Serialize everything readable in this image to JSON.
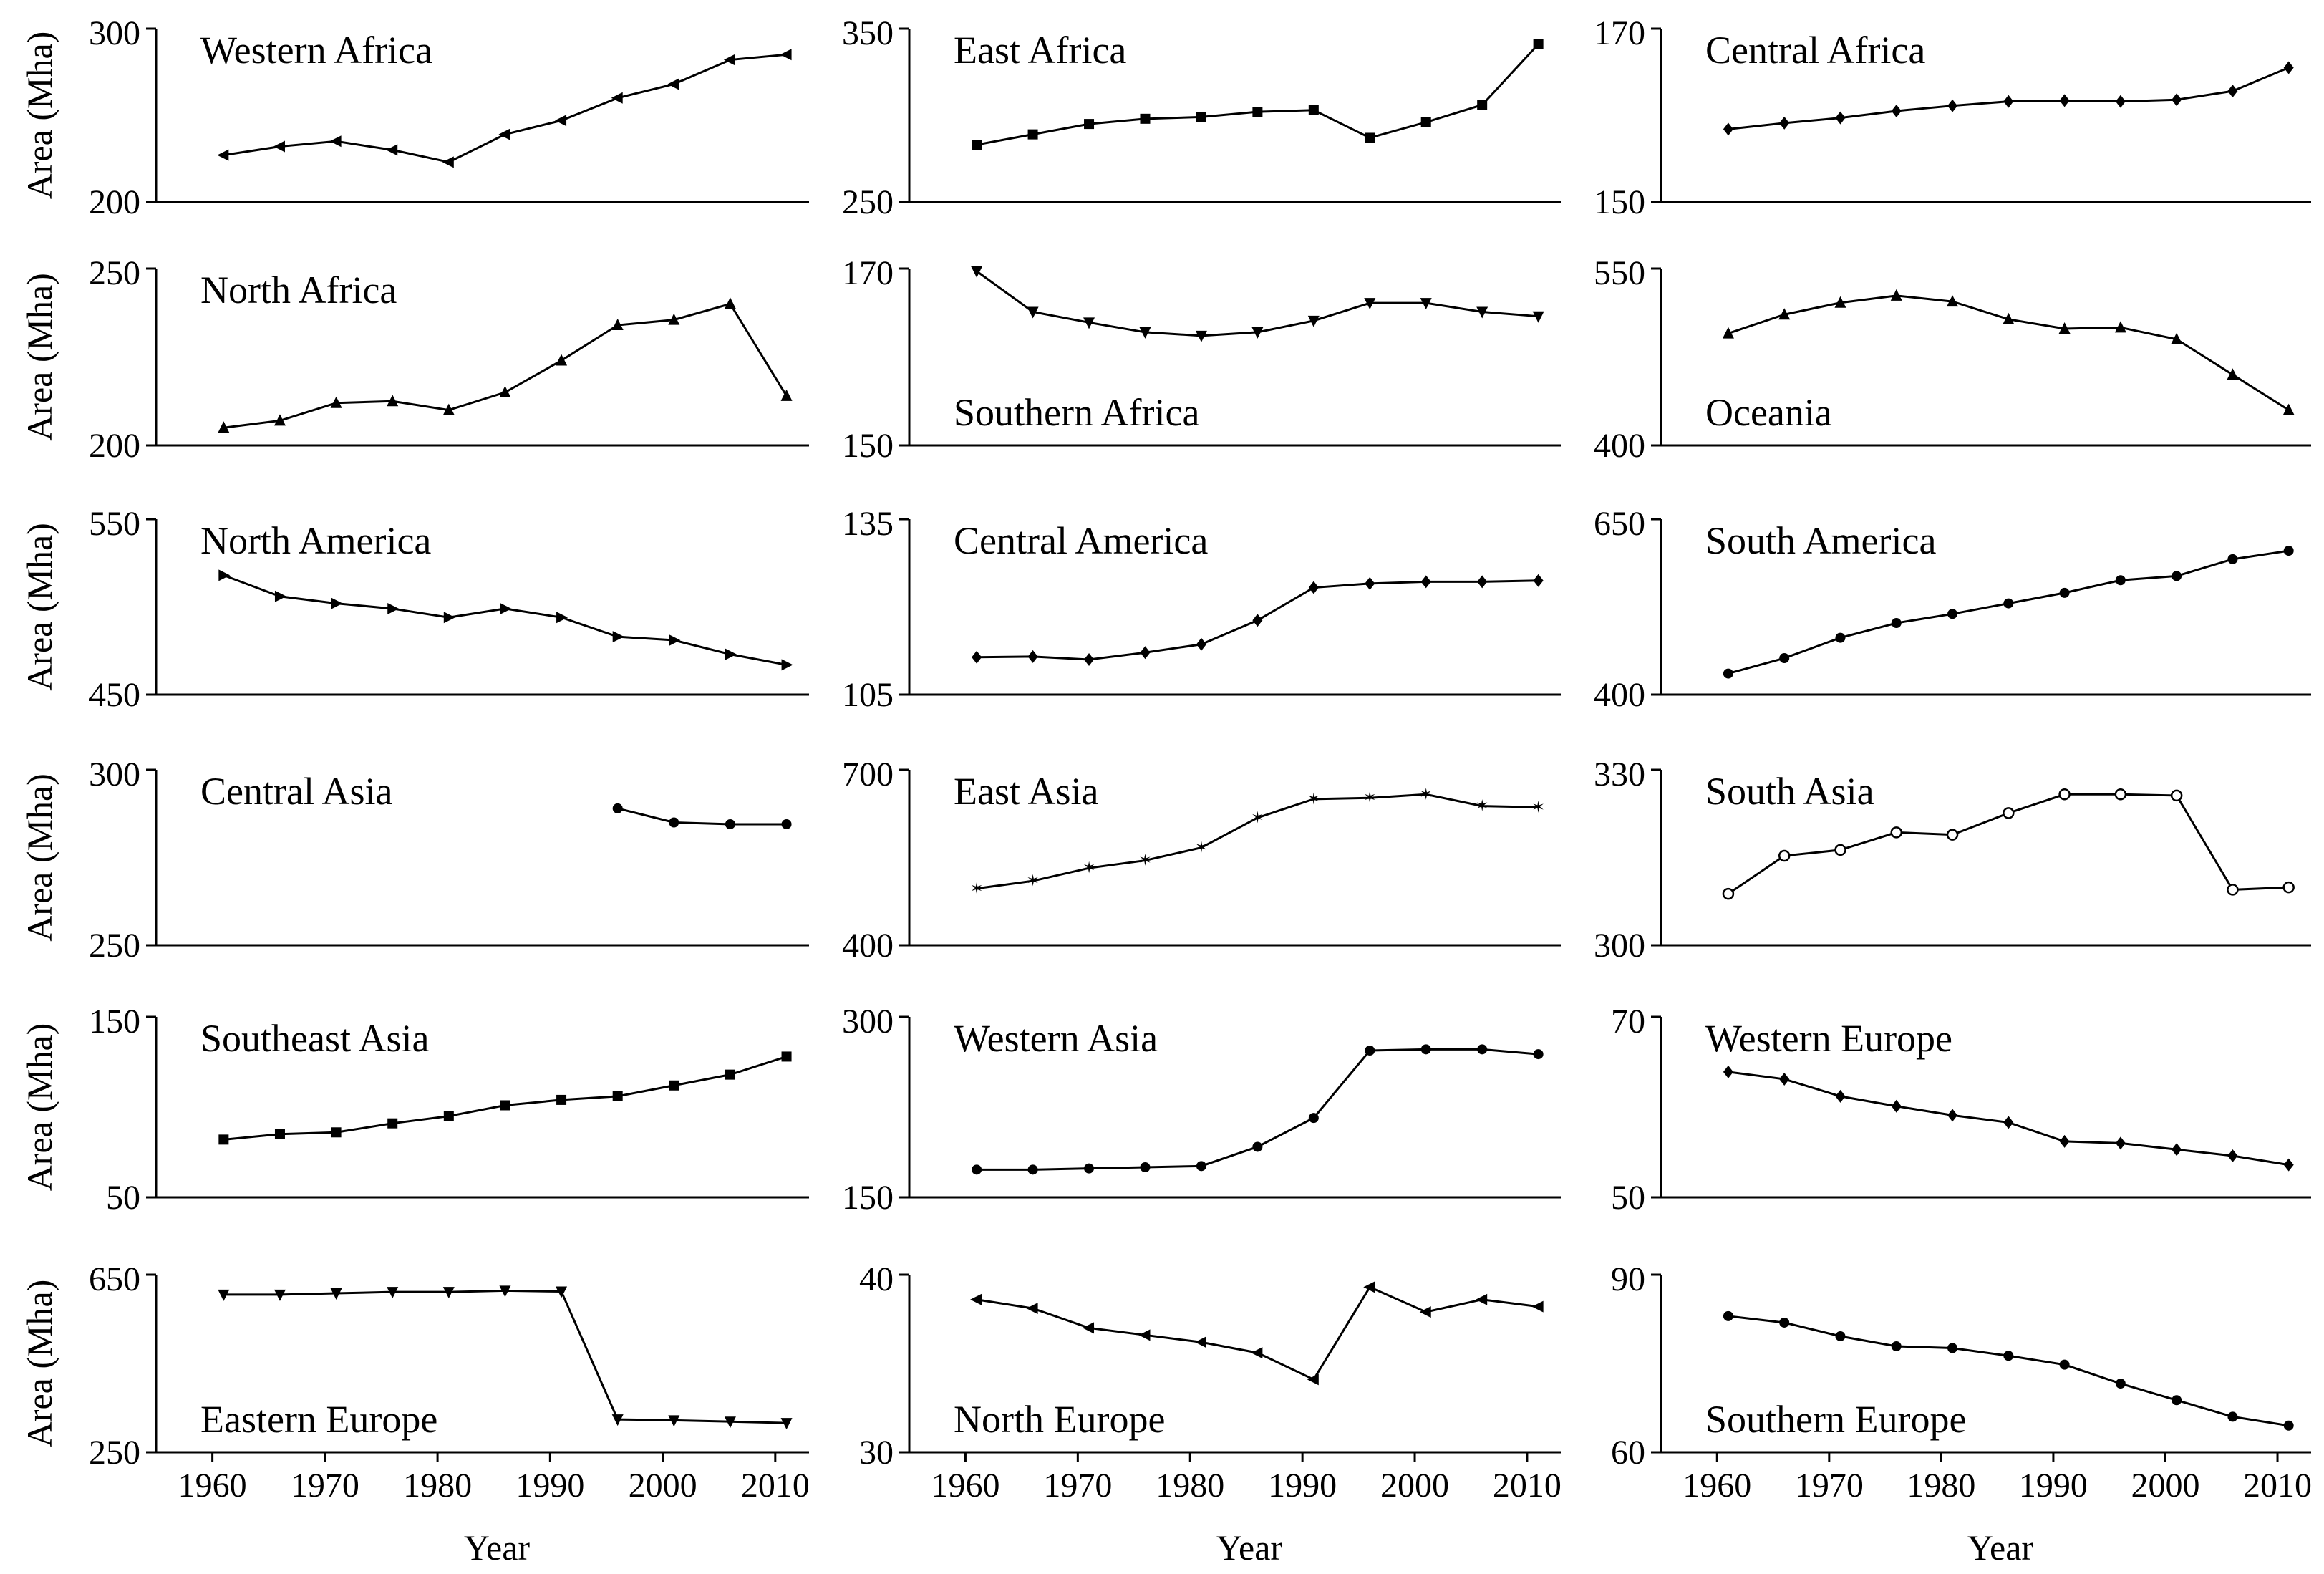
{
  "x_years": [
    1961,
    1966,
    1971,
    1976,
    1981,
    1986,
    1991,
    1996,
    2001,
    2006,
    2011
  ],
  "chart_data": [
    {
      "type": "line",
      "title": "Western Africa",
      "ylabel": "Area (Mha)",
      "xlabel": "",
      "ylim": [
        200,
        300
      ],
      "yticks": [
        200,
        300
      ],
      "xticks": [],
      "x": [
        1961,
        1966,
        1971,
        1976,
        1981,
        1986,
        1991,
        1996,
        2001,
        2006,
        2011
      ],
      "values": [
        227,
        232,
        235,
        230,
        223,
        239,
        247,
        260,
        268,
        282,
        285
      ],
      "marker": "triangle-left"
    },
    {
      "type": "line",
      "title": "East Africa",
      "ylabel": "",
      "xlabel": "",
      "ylim": [
        250,
        350
      ],
      "yticks": [
        250,
        350
      ],
      "xticks": [],
      "x": [
        1961,
        1966,
        1971,
        1976,
        1981,
        1986,
        1991,
        1996,
        2001,
        2006,
        2011
      ],
      "values": [
        283,
        289,
        295,
        298,
        299,
        302,
        303,
        287,
        296,
        306,
        341
      ],
      "marker": "square"
    },
    {
      "type": "line",
      "title": "Central Africa",
      "ylabel": "",
      "xlabel": "",
      "ylim": [
        150,
        170
      ],
      "yticks": [
        150,
        170
      ],
      "xticks": [],
      "x": [
        1961,
        1966,
        1971,
        1976,
        1981,
        1986,
        1991,
        1996,
        2001,
        2006,
        2011
      ],
      "values": [
        158.4,
        159.1,
        159.7,
        160.5,
        161.1,
        161.6,
        161.7,
        161.6,
        161.8,
        162.8,
        165.5
      ],
      "marker": "diamond"
    },
    {
      "type": "line",
      "title": "North Africa",
      "ylabel": "Area (Mha)",
      "xlabel": "",
      "ylim": [
        200,
        250
      ],
      "yticks": [
        200,
        250
      ],
      "xticks": [],
      "x": [
        1961,
        1966,
        1971,
        1976,
        1981,
        1986,
        1991,
        1996,
        2001,
        2006,
        2011
      ],
      "values": [
        205,
        207,
        212,
        212.5,
        210,
        215,
        224,
        234,
        235.5,
        240,
        214
      ],
      "marker": "triangle-up"
    },
    {
      "type": "line",
      "title": "Southern Africa",
      "ylabel": "",
      "xlabel": "",
      "ylim": [
        150,
        170
      ],
      "yticks": [
        150,
        170
      ],
      "xticks": [],
      "x": [
        1961,
        1966,
        1971,
        1976,
        1981,
        1986,
        1991,
        1996,
        2001,
        2006,
        2011
      ],
      "values": [
        169.7,
        165.1,
        163.9,
        162.8,
        162.4,
        162.8,
        164.1,
        166.1,
        166.1,
        165.1,
        164.6
      ],
      "marker": "triangle-down"
    },
    {
      "type": "line",
      "title": "Oceania",
      "ylabel": "",
      "xlabel": "",
      "ylim": [
        400,
        550
      ],
      "yticks": [
        400,
        550
      ],
      "xticks": [],
      "x": [
        1961,
        1966,
        1971,
        1976,
        1981,
        1986,
        1991,
        1996,
        2001,
        2006,
        2011
      ],
      "values": [
        495,
        511,
        521,
        527,
        522,
        507,
        499,
        500,
        490,
        460,
        430
      ],
      "marker": "triangle-up"
    },
    {
      "type": "line",
      "title": "North America",
      "ylabel": "Area (Mha)",
      "xlabel": "",
      "ylim": [
        450,
        550
      ],
      "yticks": [
        450,
        550
      ],
      "xticks": [],
      "x": [
        1961,
        1966,
        1971,
        1976,
        1981,
        1986,
        1991,
        1996,
        2001,
        2006,
        2011
      ],
      "values": [
        518,
        506,
        502,
        499,
        494,
        499,
        494,
        483,
        481,
        473,
        467
      ],
      "marker": "triangle-right"
    },
    {
      "type": "line",
      "title": "Central America",
      "ylabel": "",
      "xlabel": "",
      "ylim": [
        105,
        135
      ],
      "yticks": [
        105,
        135
      ],
      "xticks": [],
      "x": [
        1961,
        1966,
        1971,
        1976,
        1981,
        1986,
        1991,
        1996,
        2001,
        2006,
        2011
      ],
      "values": [
        111.4,
        111.5,
        111.0,
        112.2,
        113.6,
        117.7,
        123.3,
        124.0,
        124.3,
        124.3,
        124.5
      ],
      "marker": "diamond"
    },
    {
      "type": "line",
      "title": "South America",
      "ylabel": "",
      "xlabel": "",
      "ylim": [
        400,
        650
      ],
      "yticks": [
        400,
        650
      ],
      "xticks": [],
      "x": [
        1961,
        1966,
        1971,
        1976,
        1981,
        1986,
        1991,
        1996,
        2001,
        2006,
        2011
      ],
      "values": [
        430,
        452,
        481,
        502,
        515,
        530,
        545,
        563,
        569,
        593,
        605
      ],
      "marker": "circle"
    },
    {
      "type": "line",
      "title": "Central Asia",
      "ylabel": "Area (Mha)",
      "xlabel": "",
      "ylim": [
        250,
        300
      ],
      "yticks": [
        250,
        300
      ],
      "xticks": [],
      "x": [
        1996,
        2001,
        2006,
        2011
      ],
      "values": [
        289,
        285,
        284.5,
        284.5
      ],
      "marker": "circle"
    },
    {
      "type": "line",
      "title": "East Asia",
      "ylabel": "",
      "xlabel": "",
      "ylim": [
        400,
        700
      ],
      "yticks": [
        400,
        700
      ],
      "xticks": [],
      "x": [
        1961,
        1966,
        1971,
        1976,
        1981,
        1986,
        1991,
        1996,
        2001,
        2006,
        2011
      ],
      "values": [
        497,
        510,
        532,
        545,
        567,
        618,
        650,
        652,
        658,
        638,
        636
      ],
      "marker": "star"
    },
    {
      "type": "line",
      "title": "South Asia",
      "ylabel": "",
      "xlabel": "",
      "ylim": [
        300,
        330
      ],
      "yticks": [
        300,
        330
      ],
      "xticks": [],
      "x": [
        1961,
        1966,
        1971,
        1976,
        1981,
        1986,
        1991,
        1996,
        2001,
        2006,
        2011
      ],
      "values": [
        308.8,
        315.3,
        316.3,
        319.3,
        318.9,
        322.6,
        325.8,
        325.8,
        325.6,
        309.5,
        309.9
      ],
      "marker": "circle-open"
    },
    {
      "type": "line",
      "title": "Southeast Asia",
      "ylabel": "Area (Mha)",
      "xlabel": "",
      "ylim": [
        50,
        150
      ],
      "yticks": [
        50,
        150
      ],
      "xticks": [],
      "x": [
        1961,
        1966,
        1971,
        1976,
        1981,
        1986,
        1991,
        1996,
        2001,
        2006,
        2011
      ],
      "values": [
        82,
        85,
        86,
        91,
        95,
        101,
        104,
        106,
        112,
        118,
        128
      ],
      "marker": "square"
    },
    {
      "type": "line",
      "title": "Western Asia",
      "ylabel": "",
      "xlabel": "",
      "ylim": [
        150,
        300
      ],
      "yticks": [
        150,
        300
      ],
      "xticks": [],
      "x": [
        1961,
        1966,
        1971,
        1976,
        1981,
        1986,
        1991,
        1996,
        2001,
        2006,
        2011
      ],
      "values": [
        173,
        173,
        174,
        175,
        176,
        192,
        216,
        272,
        273,
        273,
        269
      ],
      "marker": "circle"
    },
    {
      "type": "line",
      "title": "Western Europe",
      "ylabel": "",
      "xlabel": "",
      "ylim": [
        50,
        70
      ],
      "yticks": [
        50,
        70
      ],
      "xticks": [],
      "x": [
        1961,
        1966,
        1971,
        1976,
        1981,
        1986,
        1991,
        1996,
        2001,
        2006,
        2011
      ],
      "values": [
        63.9,
        63.1,
        61.2,
        60.1,
        59.1,
        58.3,
        56.2,
        56.0,
        55.3,
        54.6,
        53.6
      ],
      "marker": "diamond"
    },
    {
      "type": "line",
      "title": "Eastern Europe",
      "ylabel": "Area (Mha)",
      "xlabel": "Year",
      "ylim": [
        250,
        650
      ],
      "yticks": [
        250,
        650
      ],
      "xticks": [
        1960,
        1970,
        1980,
        1990,
        2000,
        2010
      ],
      "x": [
        1961,
        1966,
        1971,
        1976,
        1981,
        1986,
        1991,
        1996,
        2001,
        2006,
        2011
      ],
      "values": [
        605,
        605,
        608,
        611,
        611,
        614,
        612,
        324,
        322,
        319,
        316
      ],
      "marker": "triangle-down"
    },
    {
      "type": "line",
      "title": "North Europe",
      "ylabel": "",
      "xlabel": "Year",
      "ylim": [
        30,
        40
      ],
      "yticks": [
        30,
        40
      ],
      "xticks": [
        1960,
        1970,
        1980,
        1990,
        2000,
        2010
      ],
      "x": [
        1961,
        1966,
        1971,
        1976,
        1981,
        1986,
        1991,
        1996,
        2001,
        2006,
        2011
      ],
      "values": [
        38.6,
        38.1,
        37.0,
        36.6,
        36.2,
        35.6,
        34.1,
        39.3,
        37.9,
        38.6,
        38.2
      ],
      "marker": "triangle-left"
    },
    {
      "type": "line",
      "title": "Southern Europe",
      "ylabel": "",
      "xlabel": "Year",
      "ylim": [
        60,
        90
      ],
      "yticks": [
        60,
        90
      ],
      "xticks": [
        1960,
        1970,
        1980,
        1990,
        2000,
        2010
      ],
      "x": [
        1961,
        1966,
        1971,
        1976,
        1981,
        1986,
        1991,
        1996,
        2001,
        2006,
        2011
      ],
      "values": [
        83.0,
        81.9,
        79.6,
        77.9,
        77.6,
        76.3,
        74.8,
        71.6,
        68.8,
        66.0,
        64.5
      ],
      "marker": "circle"
    }
  ]
}
